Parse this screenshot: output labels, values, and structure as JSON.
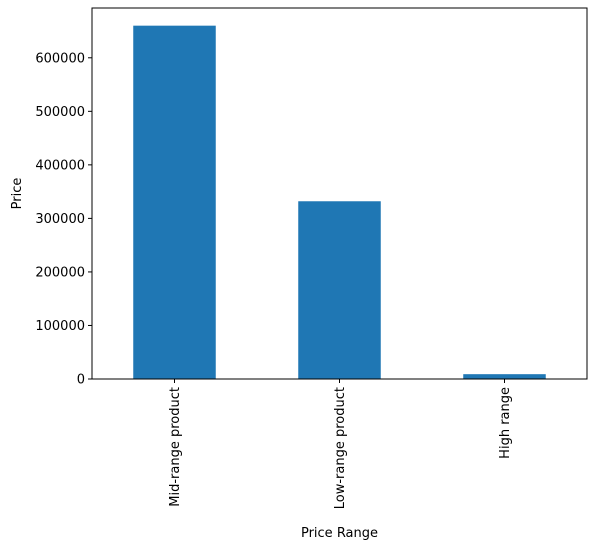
{
  "chart_data": {
    "type": "bar",
    "categories": [
      "Mid-range product",
      "Low-range product",
      "High range"
    ],
    "values": [
      660000,
      332000,
      9000
    ],
    "xlabel": "Price Range",
    "ylabel": "Price",
    "ylim": [
      0,
      693000
    ],
    "yticks": [
      0,
      100000,
      200000,
      300000,
      400000,
      500000,
      600000
    ],
    "ytick_labels": [
      "0",
      "100000",
      "200000",
      "300000",
      "400000",
      "500000",
      "600000"
    ],
    "grid": false,
    "legend": "none",
    "colors": {
      "bar": "#1f77b4",
      "axis": "#000000"
    }
  }
}
